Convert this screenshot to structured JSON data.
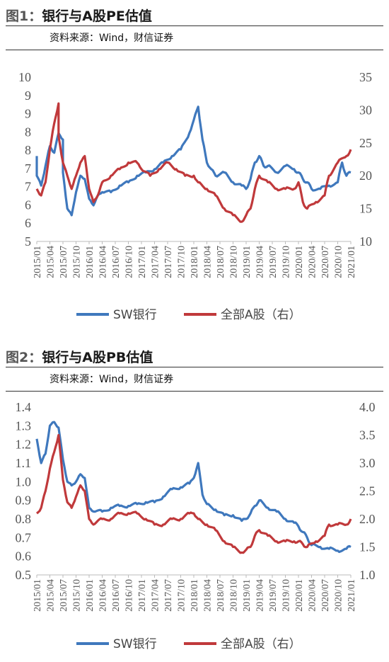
{
  "figures": [
    {
      "fig_no": "图1：",
      "title": "银行与A股PE估值",
      "source": "资料来源：Wind，财信证券"
    },
    {
      "fig_no": "图2：",
      "title": "银行与A股PB估值",
      "source": "资料来源：Wind，财信证券"
    }
  ],
  "chart_data": [
    {
      "type": "line",
      "title": "银行与A股PE估值",
      "y_left": {
        "ticks": [
          "10",
          "9",
          "9",
          "8",
          "8",
          "7",
          "7",
          "6",
          "6",
          "5"
        ],
        "min": 5,
        "max": 10
      },
      "y_right": {
        "ticks": [
          "35",
          "30",
          "25",
          "20",
          "15",
          "10"
        ],
        "min": 10,
        "max": 35
      },
      "x_ticks": [
        "2015/01",
        "2015/04",
        "2015/07",
        "2015/10",
        "2016/01",
        "2016/04",
        "2016/07",
        "2016/10",
        "2017/01",
        "2017/04",
        "2017/07",
        "2017/10",
        "2018/01",
        "2018/04",
        "2018/07",
        "2018/10",
        "2019/01",
        "2019/04",
        "2019/07",
        "2019/10",
        "2020/01",
        "2020/04",
        "2020/07",
        "2020/10",
        "2021/01"
      ],
      "series": [
        {
          "name": "SW银行",
          "axis": "left",
          "color": "#3F78BD",
          "x": [
            "2015/01",
            "2015/01",
            "2015/02",
            "2015/03",
            "2015/04",
            "2015/05",
            "2015/06",
            "2015/07",
            "2015/07",
            "2015/08",
            "2015/09",
            "2015/10",
            "2015/11",
            "2015/12",
            "2016/01",
            "2016/02",
            "2016/03",
            "2016/04",
            "2016/06",
            "2016/08",
            "2016/10",
            "2016/12",
            "2017/02",
            "2017/04",
            "2017/06",
            "2017/08",
            "2017/10",
            "2017/12",
            "2018/01",
            "2018/02",
            "2018/03",
            "2018/04",
            "2018/05",
            "2018/06",
            "2018/08",
            "2018/10",
            "2018/12",
            "2019/01",
            "2019/02",
            "2019/03",
            "2019/04",
            "2019/05",
            "2019/06",
            "2019/08",
            "2019/10",
            "2019/12",
            "2020/01",
            "2020/02",
            "2020/03",
            "2020/04",
            "2020/06",
            "2020/08",
            "2020/10",
            "2020/11",
            "2020/12",
            "2021/01"
          ],
          "values": [
            7.6,
            7.0,
            6.7,
            7.3,
            7.9,
            7.7,
            8.3,
            8.1,
            7.1,
            6.0,
            5.8,
            6.5,
            7.0,
            6.9,
            6.3,
            6.1,
            6.4,
            6.5,
            6.5,
            6.7,
            6.8,
            7.0,
            7.1,
            7.2,
            7.4,
            7.6,
            7.8,
            8.3,
            8.7,
            9.1,
            8.1,
            7.4,
            7.2,
            7.0,
            7.1,
            6.8,
            6.7,
            6.6,
            6.9,
            7.4,
            7.6,
            7.3,
            7.3,
            7.1,
            7.3,
            7.2,
            7.1,
            6.9,
            6.8,
            6.6,
            6.6,
            6.7,
            6.8,
            7.4,
            7.0,
            7.1
          ]
        },
        {
          "name": "全部A股（右）",
          "axis": "right",
          "color": "#C0393B",
          "x": [
            "2015/01",
            "2015/02",
            "2015/03",
            "2015/04",
            "2015/05",
            "2015/06",
            "2015/06",
            "2015/07",
            "2015/08",
            "2015/09",
            "2015/10",
            "2015/11",
            "2015/12",
            "2016/01",
            "2016/02",
            "2016/03",
            "2016/04",
            "2016/06",
            "2016/08",
            "2016/10",
            "2016/12",
            "2017/01",
            "2017/03",
            "2017/05",
            "2017/07",
            "2017/09",
            "2017/11",
            "2018/01",
            "2018/02",
            "2018/04",
            "2018/06",
            "2018/08",
            "2018/10",
            "2018/12",
            "2019/01",
            "2019/02",
            "2019/03",
            "2019/04",
            "2019/06",
            "2019/08",
            "2019/10",
            "2019/12",
            "2020/01",
            "2020/02",
            "2020/03",
            "2020/05",
            "2020/07",
            "2020/08",
            "2020/10",
            "2020/12",
            "2021/01"
          ],
          "values": [
            18,
            17,
            19,
            24,
            28,
            31,
            26,
            22,
            20,
            18,
            20,
            22,
            23,
            18,
            16,
            17,
            19,
            20,
            21,
            22,
            22,
            21,
            20,
            21,
            22,
            21,
            20,
            20,
            19,
            18,
            17,
            15,
            14,
            13,
            14,
            15,
            18,
            20,
            19,
            18,
            18,
            18,
            19,
            16,
            15,
            16,
            17,
            20,
            22,
            23,
            24
          ]
        }
      ]
    },
    {
      "type": "line",
      "title": "银行与A股PB估值",
      "y_left": {
        "ticks": [
          "1.4",
          "1.3",
          "1.2",
          "1.1",
          "1.0",
          "0.9",
          "0.8",
          "0.7",
          "0.6",
          "0.5"
        ],
        "min": 0.5,
        "max": 1.4
      },
      "y_right": {
        "ticks": [
          "4.0",
          "3.5",
          "3.0",
          "2.5",
          "2.0",
          "1.5",
          "1.0"
        ],
        "min": 1.0,
        "max": 4.0
      },
      "x_ticks": [
        "2015/01",
        "2015/04",
        "2015/07",
        "2015/10",
        "2016/01",
        "2016/04",
        "2016/07",
        "2016/10",
        "2017/01",
        "2017/04",
        "2017/07",
        "2017/10",
        "2018/01",
        "2018/04",
        "2018/07",
        "2018/10",
        "2019/01",
        "2019/04",
        "2019/07",
        "2019/10",
        "2020/01",
        "2020/04",
        "2020/07",
        "2020/10",
        "2021/01"
      ],
      "series": [
        {
          "name": "SW银行",
          "axis": "left",
          "color": "#3F78BD",
          "x": [
            "2015/01",
            "2015/02",
            "2015/03",
            "2015/04",
            "2015/05",
            "2015/06",
            "2015/07",
            "2015/08",
            "2015/09",
            "2015/10",
            "2015/11",
            "2015/12",
            "2016/01",
            "2016/02",
            "2016/04",
            "2016/06",
            "2016/08",
            "2016/10",
            "2016/12",
            "2017/02",
            "2017/04",
            "2017/06",
            "2017/08",
            "2017/10",
            "2017/12",
            "2018/01",
            "2018/02",
            "2018/03",
            "2018/04",
            "2018/06",
            "2018/08",
            "2018/10",
            "2018/12",
            "2019/01",
            "2019/02",
            "2019/03",
            "2019/04",
            "2019/06",
            "2019/08",
            "2019/10",
            "2019/12",
            "2020/01",
            "2020/02",
            "2020/03",
            "2020/04",
            "2020/06",
            "2020/08",
            "2020/10",
            "2020/12",
            "2021/01"
          ],
          "values": [
            1.23,
            1.1,
            1.15,
            1.3,
            1.32,
            1.29,
            1.12,
            1.0,
            0.98,
            1.0,
            1.04,
            1.02,
            0.86,
            0.84,
            0.84,
            0.86,
            0.87,
            0.87,
            0.88,
            0.89,
            0.89,
            0.92,
            0.96,
            0.97,
            0.99,
            1.02,
            1.1,
            0.93,
            0.88,
            0.85,
            0.82,
            0.82,
            0.79,
            0.8,
            0.83,
            0.87,
            0.9,
            0.86,
            0.84,
            0.8,
            0.78,
            0.76,
            0.73,
            0.7,
            0.66,
            0.65,
            0.64,
            0.63,
            0.64,
            0.65
          ]
        },
        {
          "name": "全部A股（右）",
          "axis": "right",
          "color": "#C0393B",
          "x": [
            "2015/01",
            "2015/02",
            "2015/03",
            "2015/04",
            "2015/05",
            "2015/06",
            "2015/07",
            "2015/08",
            "2015/09",
            "2015/10",
            "2015/11",
            "2015/12",
            "2016/01",
            "2016/02",
            "2016/04",
            "2016/06",
            "2016/08",
            "2016/10",
            "2016/12",
            "2017/02",
            "2017/04",
            "2017/06",
            "2017/08",
            "2017/10",
            "2017/12",
            "2018/01",
            "2018/02",
            "2018/04",
            "2018/06",
            "2018/08",
            "2018/10",
            "2018/12",
            "2019/01",
            "2019/02",
            "2019/03",
            "2019/04",
            "2019/06",
            "2019/08",
            "2019/10",
            "2019/12",
            "2020/01",
            "2020/02",
            "2020/03",
            "2020/05",
            "2020/07",
            "2020/08",
            "2020/10",
            "2020/12",
            "2021/01"
          ],
          "values": [
            2.1,
            2.2,
            2.5,
            2.9,
            3.2,
            3.5,
            2.7,
            2.3,
            2.2,
            2.4,
            2.6,
            2.5,
            2.0,
            1.9,
            2.0,
            2.0,
            2.1,
            2.1,
            2.1,
            2.0,
            1.9,
            1.9,
            2.0,
            2.0,
            2.1,
            2.1,
            2.0,
            1.9,
            1.8,
            1.6,
            1.5,
            1.4,
            1.45,
            1.5,
            1.7,
            1.8,
            1.7,
            1.6,
            1.6,
            1.6,
            1.6,
            1.55,
            1.5,
            1.6,
            1.7,
            1.9,
            1.9,
            1.9,
            2.0
          ]
        }
      ]
    }
  ]
}
